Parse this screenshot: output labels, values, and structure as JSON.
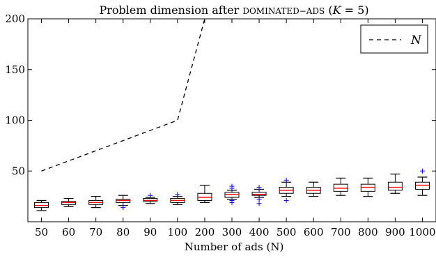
{
  "chart_data": {
    "type": "box",
    "title_main": "Problem dimension after ",
    "title_sc": "DOMINATED−ADS",
    "title_paren_open": " (",
    "title_var": "K",
    "title_eq": " = 5)",
    "xlabel": "Number of ads (N)",
    "ylabel": "",
    "ylim": [
      0,
      200
    ],
    "yticks": [
      50,
      100,
      150,
      200
    ],
    "grid": false,
    "legend_position": "top-right",
    "colors": {
      "box": "#000000",
      "median": "#ff0000",
      "outlier": "#0000ff",
      "line": "#000000"
    },
    "categories": [
      "50",
      "60",
      "70",
      "80",
      "90",
      "100",
      "200",
      "300",
      "400",
      "500",
      "600",
      "700",
      "800",
      "900",
      "1000"
    ],
    "reference_line": {
      "name": "N",
      "style": "dashed",
      "x": [
        "50",
        "60",
        "70",
        "80",
        "90",
        "100",
        "200"
      ],
      "y": [
        50,
        60,
        70,
        80,
        90,
        100,
        200
      ]
    },
    "boxes": [
      {
        "q1": 14,
        "median": 16,
        "q3": 19,
        "whisker_low": 11,
        "whisker_high": 21,
        "outliers": []
      },
      {
        "q1": 17,
        "median": 19,
        "q3": 20,
        "whisker_low": 15,
        "whisker_high": 23,
        "outliers": []
      },
      {
        "q1": 17,
        "median": 19,
        "q3": 21,
        "whisker_low": 14,
        "whisker_high": 25,
        "outliers": []
      },
      {
        "q1": 19,
        "median": 21,
        "q3": 22,
        "whisker_low": 16,
        "whisker_high": 26,
        "outliers": [
          14
        ]
      },
      {
        "q1": 20,
        "median": 21,
        "q3": 23,
        "whisker_low": 18,
        "whisker_high": 24,
        "outliers": [
          26
        ]
      },
      {
        "q1": 19,
        "median": 21,
        "q3": 23,
        "whisker_low": 17,
        "whisker_high": 25,
        "outliers": [
          27
        ]
      },
      {
        "q1": 21,
        "median": 24,
        "q3": 28,
        "whisker_low": 19,
        "whisker_high": 36,
        "outliers": []
      },
      {
        "q1": 24,
        "median": 27,
        "q3": 29,
        "whisker_low": 22,
        "whisker_high": 31,
        "outliers": [
          19,
          21,
          33,
          35
        ]
      },
      {
        "q1": 26,
        "median": 27,
        "q3": 29,
        "whisker_low": 24,
        "whisker_high": 32,
        "outliers": [
          18,
          22,
          34
        ]
      },
      {
        "q1": 28,
        "median": 31,
        "q3": 34,
        "whisker_low": 25,
        "whisker_high": 39,
        "outliers": [
          21,
          41
        ]
      },
      {
        "q1": 28,
        "median": 31,
        "q3": 34,
        "whisker_low": 25,
        "whisker_high": 39,
        "outliers": []
      },
      {
        "q1": 30,
        "median": 33,
        "q3": 37,
        "whisker_low": 26,
        "whisker_high": 43,
        "outliers": []
      },
      {
        "q1": 30,
        "median": 34,
        "q3": 37,
        "whisker_low": 25,
        "whisker_high": 43,
        "outliers": []
      },
      {
        "q1": 31,
        "median": 34,
        "q3": 39,
        "whisker_low": 28,
        "whisker_high": 47,
        "outliers": []
      },
      {
        "q1": 32,
        "median": 36,
        "q3": 39,
        "whisker_low": 26,
        "whisker_high": 44,
        "outliers": [
          50
        ]
      }
    ]
  }
}
